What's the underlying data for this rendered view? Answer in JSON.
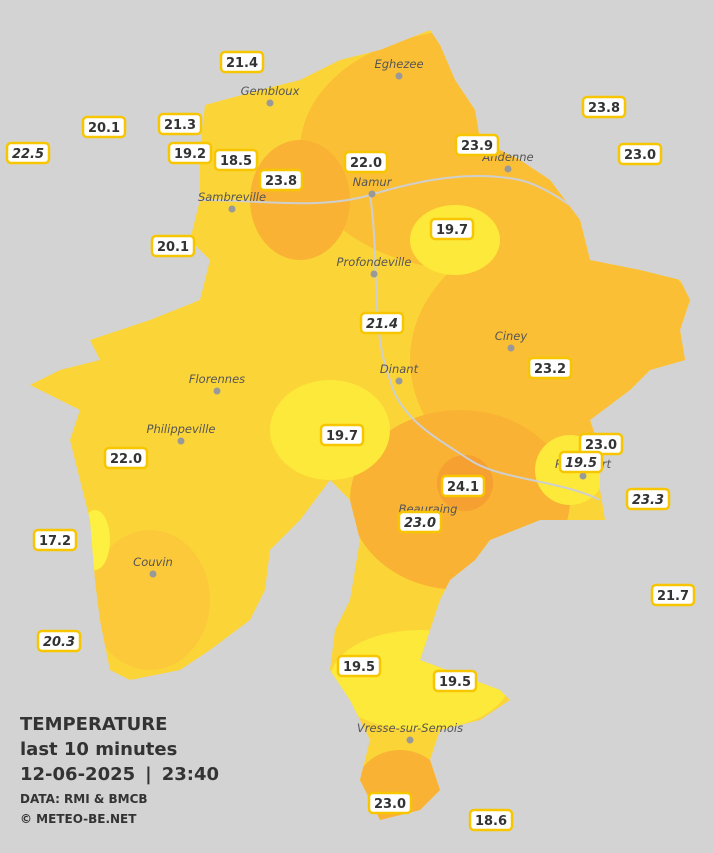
{
  "legend": {
    "title": "TEMPERATURE",
    "subtitle": "last 10 minutes",
    "date": "12-06-2025",
    "separator": "|",
    "time": "23:40",
    "source": "DATA: RMI & BMCB",
    "credit": "© METEO-BE.NET"
  },
  "towns": [
    "Eghezee",
    "Gembloux",
    "Andenne",
    "Namur",
    "Sambreville",
    "Profondeville",
    "Ciney",
    "Florennes",
    "Dinant",
    "Philippeville",
    "Rochefort",
    "Beauraing",
    "Couvin",
    "Vresse-sur-Semois"
  ],
  "stations": [
    "21.4",
    "20.1",
    "21.3",
    "19.2",
    "18.5",
    "22.5",
    "23.8",
    "22.0",
    "23.9",
    "23.8",
    "23.0",
    "19.7",
    "20.1",
    "21.4",
    "23.2",
    "19.7",
    "22.0",
    "23.0",
    "19.5",
    "24.1",
    "23.3",
    "23.0",
    "17.2",
    "21.7",
    "20.3",
    "19.5",
    "19.5",
    "23.0",
    "18.6"
  ]
}
